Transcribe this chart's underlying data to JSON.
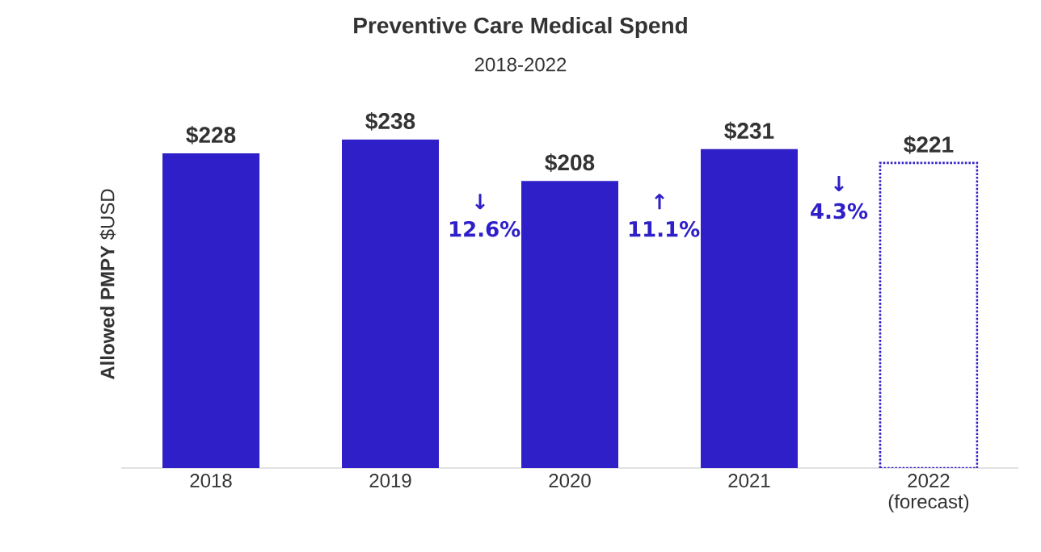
{
  "chart_data": {
    "type": "bar",
    "title": "Preventive Care Medical Spend",
    "subtitle": "2018-2022",
    "ylabel": "**Allowed PMPY** $USD",
    "categories": [
      "2018",
      "2019",
      "2020",
      "2021",
      "2022 (forecast)"
    ],
    "series": [
      {
        "color": "#2f1fc8",
        "values": [
          228,
          238,
          208,
          231,
          null
        ],
        "value_labels": [
          "$228",
          "$238",
          "$208",
          "$231",
          null
        ]
      },
      {
        "color": "#2f1fc8",
        "line_style": "dotted",
        "values": [
          null,
          null,
          null,
          null,
          221
        ],
        "value_labels": [
          null,
          null,
          null,
          null,
          "$221"
        ]
      }
    ],
    "annotations": [
      "↓ 12.6%",
      "↑ 11.1%",
      "↓ 4.3%"
    ]
  }
}
